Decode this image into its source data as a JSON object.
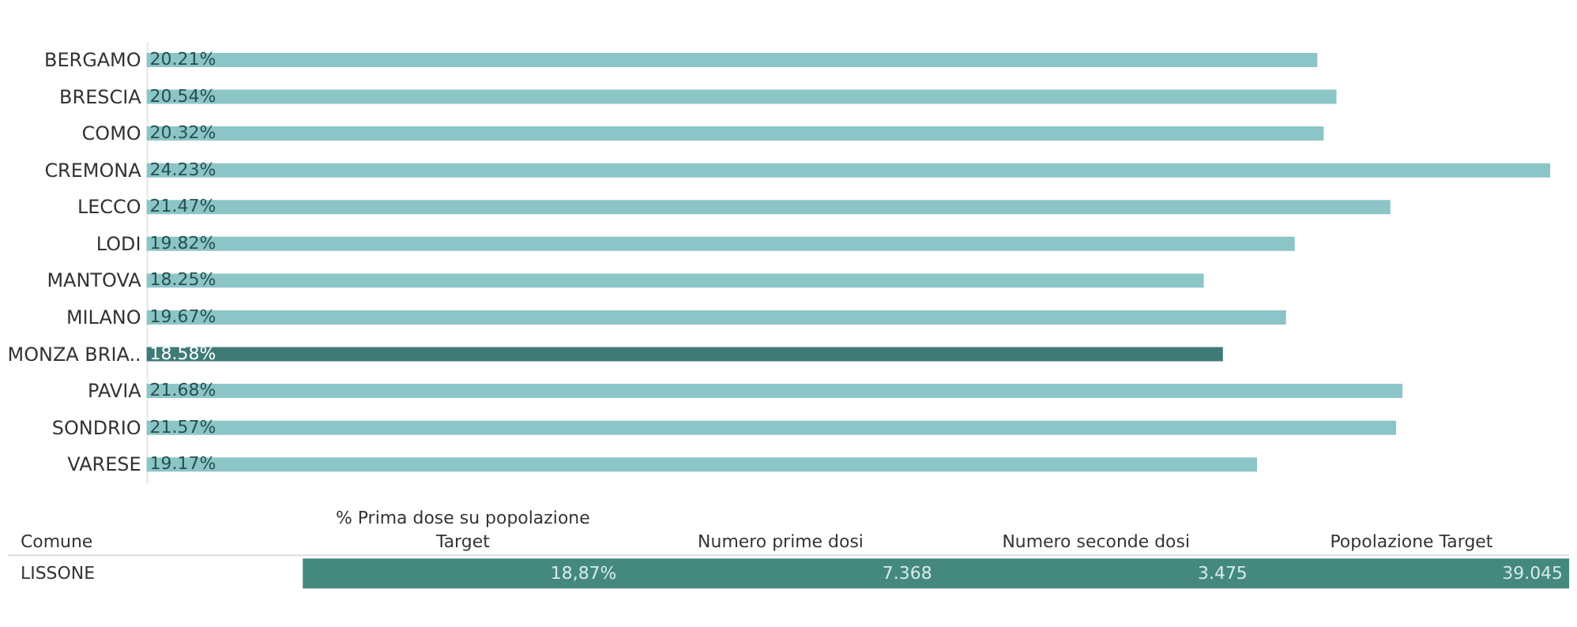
{
  "chart_data": [
    {
      "type": "bar",
      "orientation": "horizontal",
      "data_labels": true,
      "categories": [
        "BERGAMO",
        "BRESCIA",
        "COMO",
        "CREMONA",
        "LECCO",
        "LODI",
        "MANTOVA",
        "MILANO",
        "MONZA BRIA..",
        "PAVIA",
        "SONDRIO",
        "VARESE"
      ],
      "values": [
        20.21,
        20.54,
        20.32,
        24.23,
        21.47,
        19.82,
        18.25,
        19.67,
        18.58,
        21.68,
        21.57,
        19.17
      ],
      "value_labels": [
        "20.21%",
        "20.54%",
        "20.32%",
        "24.23%",
        "21.47%",
        "19.82%",
        "18.25%",
        "19.67%",
        "18.58%",
        "21.68%",
        "21.57%",
        "19.17%"
      ],
      "colors": [
        "#8cc5c7",
        "#8cc5c7",
        "#8cc5c7",
        "#8cc5c7",
        "#8cc5c7",
        "#8cc5c7",
        "#8cc5c7",
        "#8cc5c7",
        "#3f7b76",
        "#8cc5c7",
        "#8cc5c7",
        "#8cc5c7"
      ]
    },
    {
      "type": "other",
      "color": "#44887e",
      "annotations": [
        "Comune",
        "% Prima dose su popolazione Target",
        "Numero prime dosi",
        "Numero seconde dosi",
        "Popolazione Target",
        "LISSONE",
        "18,87%",
        "7.368",
        "3.475",
        "39.045"
      ]
    }
  ]
}
